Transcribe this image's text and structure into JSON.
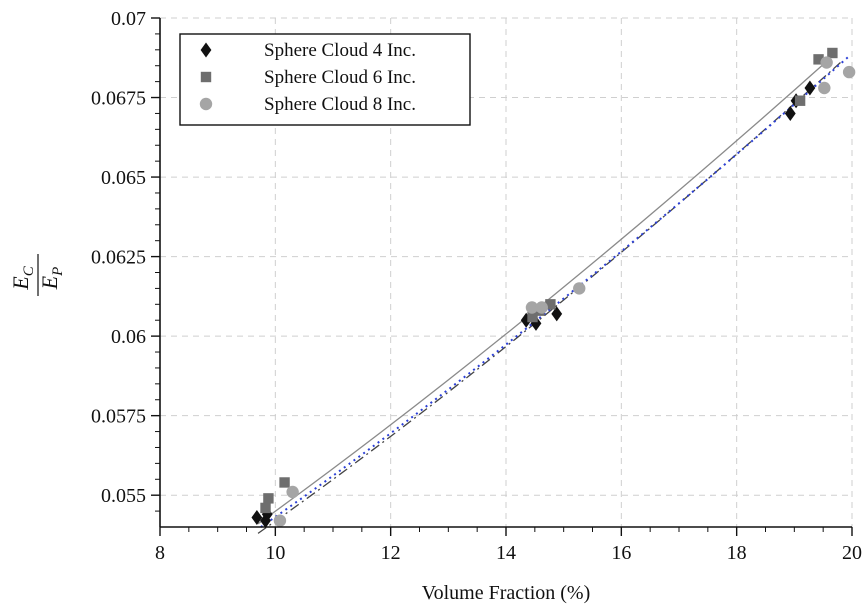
{
  "chart_data": {
    "type": "scatter",
    "title": "",
    "xlabel": "Volume Fraction (%)",
    "ylabel": {
      "numerator": "E",
      "numerator_sub": "C",
      "denominator": "E",
      "denominator_sub": "P"
    },
    "xlim": [
      8,
      20
    ],
    "ylim": [
      0.054,
      0.07
    ],
    "x_ticks": [
      "8",
      "10",
      "12",
      "14",
      "16",
      "18",
      "20"
    ],
    "y_ticks": [
      "0.055",
      "0.0575",
      "0.06",
      "0.0625",
      "0.065",
      "0.0675",
      "0.07"
    ],
    "grid": true,
    "legend_position": "top-left",
    "series": [
      {
        "name": "Sphere Cloud 4 Inc.",
        "marker": "diamond",
        "color": "#111111",
        "points": [
          [
            9.68,
            0.0543
          ],
          [
            9.83,
            0.0542
          ],
          [
            9.86,
            0.0544
          ],
          [
            14.35,
            0.0605
          ],
          [
            14.52,
            0.0604
          ],
          [
            14.88,
            0.0607
          ],
          [
            18.93,
            0.067
          ],
          [
            19.03,
            0.0674
          ],
          [
            19.27,
            0.0678
          ]
        ]
      },
      {
        "name": "Sphere Cloud 6 Inc.",
        "marker": "square",
        "color": "#6e6e6e",
        "points": [
          [
            9.83,
            0.0546
          ],
          [
            9.88,
            0.0549
          ],
          [
            10.16,
            0.0554
          ],
          [
            14.46,
            0.0606
          ],
          [
            14.58,
            0.0608
          ],
          [
            14.77,
            0.061
          ],
          [
            19.1,
            0.0674
          ],
          [
            19.42,
            0.0687
          ],
          [
            19.66,
            0.0689
          ]
        ]
      },
      {
        "name": "Sphere Cloud 8 Inc.",
        "marker": "circle",
        "color": "#a5a5a5",
        "points": [
          [
            10.08,
            0.0542
          ],
          [
            10.3,
            0.0551
          ],
          [
            14.45,
            0.0609
          ],
          [
            14.62,
            0.0609
          ],
          [
            15.27,
            0.0615
          ],
          [
            19.52,
            0.0678
          ],
          [
            19.56,
            0.0686
          ],
          [
            19.95,
            0.0683
          ]
        ]
      }
    ],
    "fit_lines": [
      {
        "style": "solid",
        "color": "#8a8a8a",
        "points": [
          [
            9.7,
            0.0541
          ],
          [
            14.5,
            0.0608
          ],
          [
            19.6,
            0.0687
          ]
        ]
      },
      {
        "style": "dashdot",
        "color": "#444444",
        "points": [
          [
            9.7,
            0.0538
          ],
          [
            14.5,
            0.0604
          ],
          [
            19.8,
            0.0686
          ]
        ]
      },
      {
        "style": "dotted",
        "color": "#2b3fd6",
        "points": [
          [
            9.75,
            0.054
          ],
          [
            14.6,
            0.0606
          ],
          [
            19.95,
            0.0688
          ]
        ]
      }
    ]
  }
}
